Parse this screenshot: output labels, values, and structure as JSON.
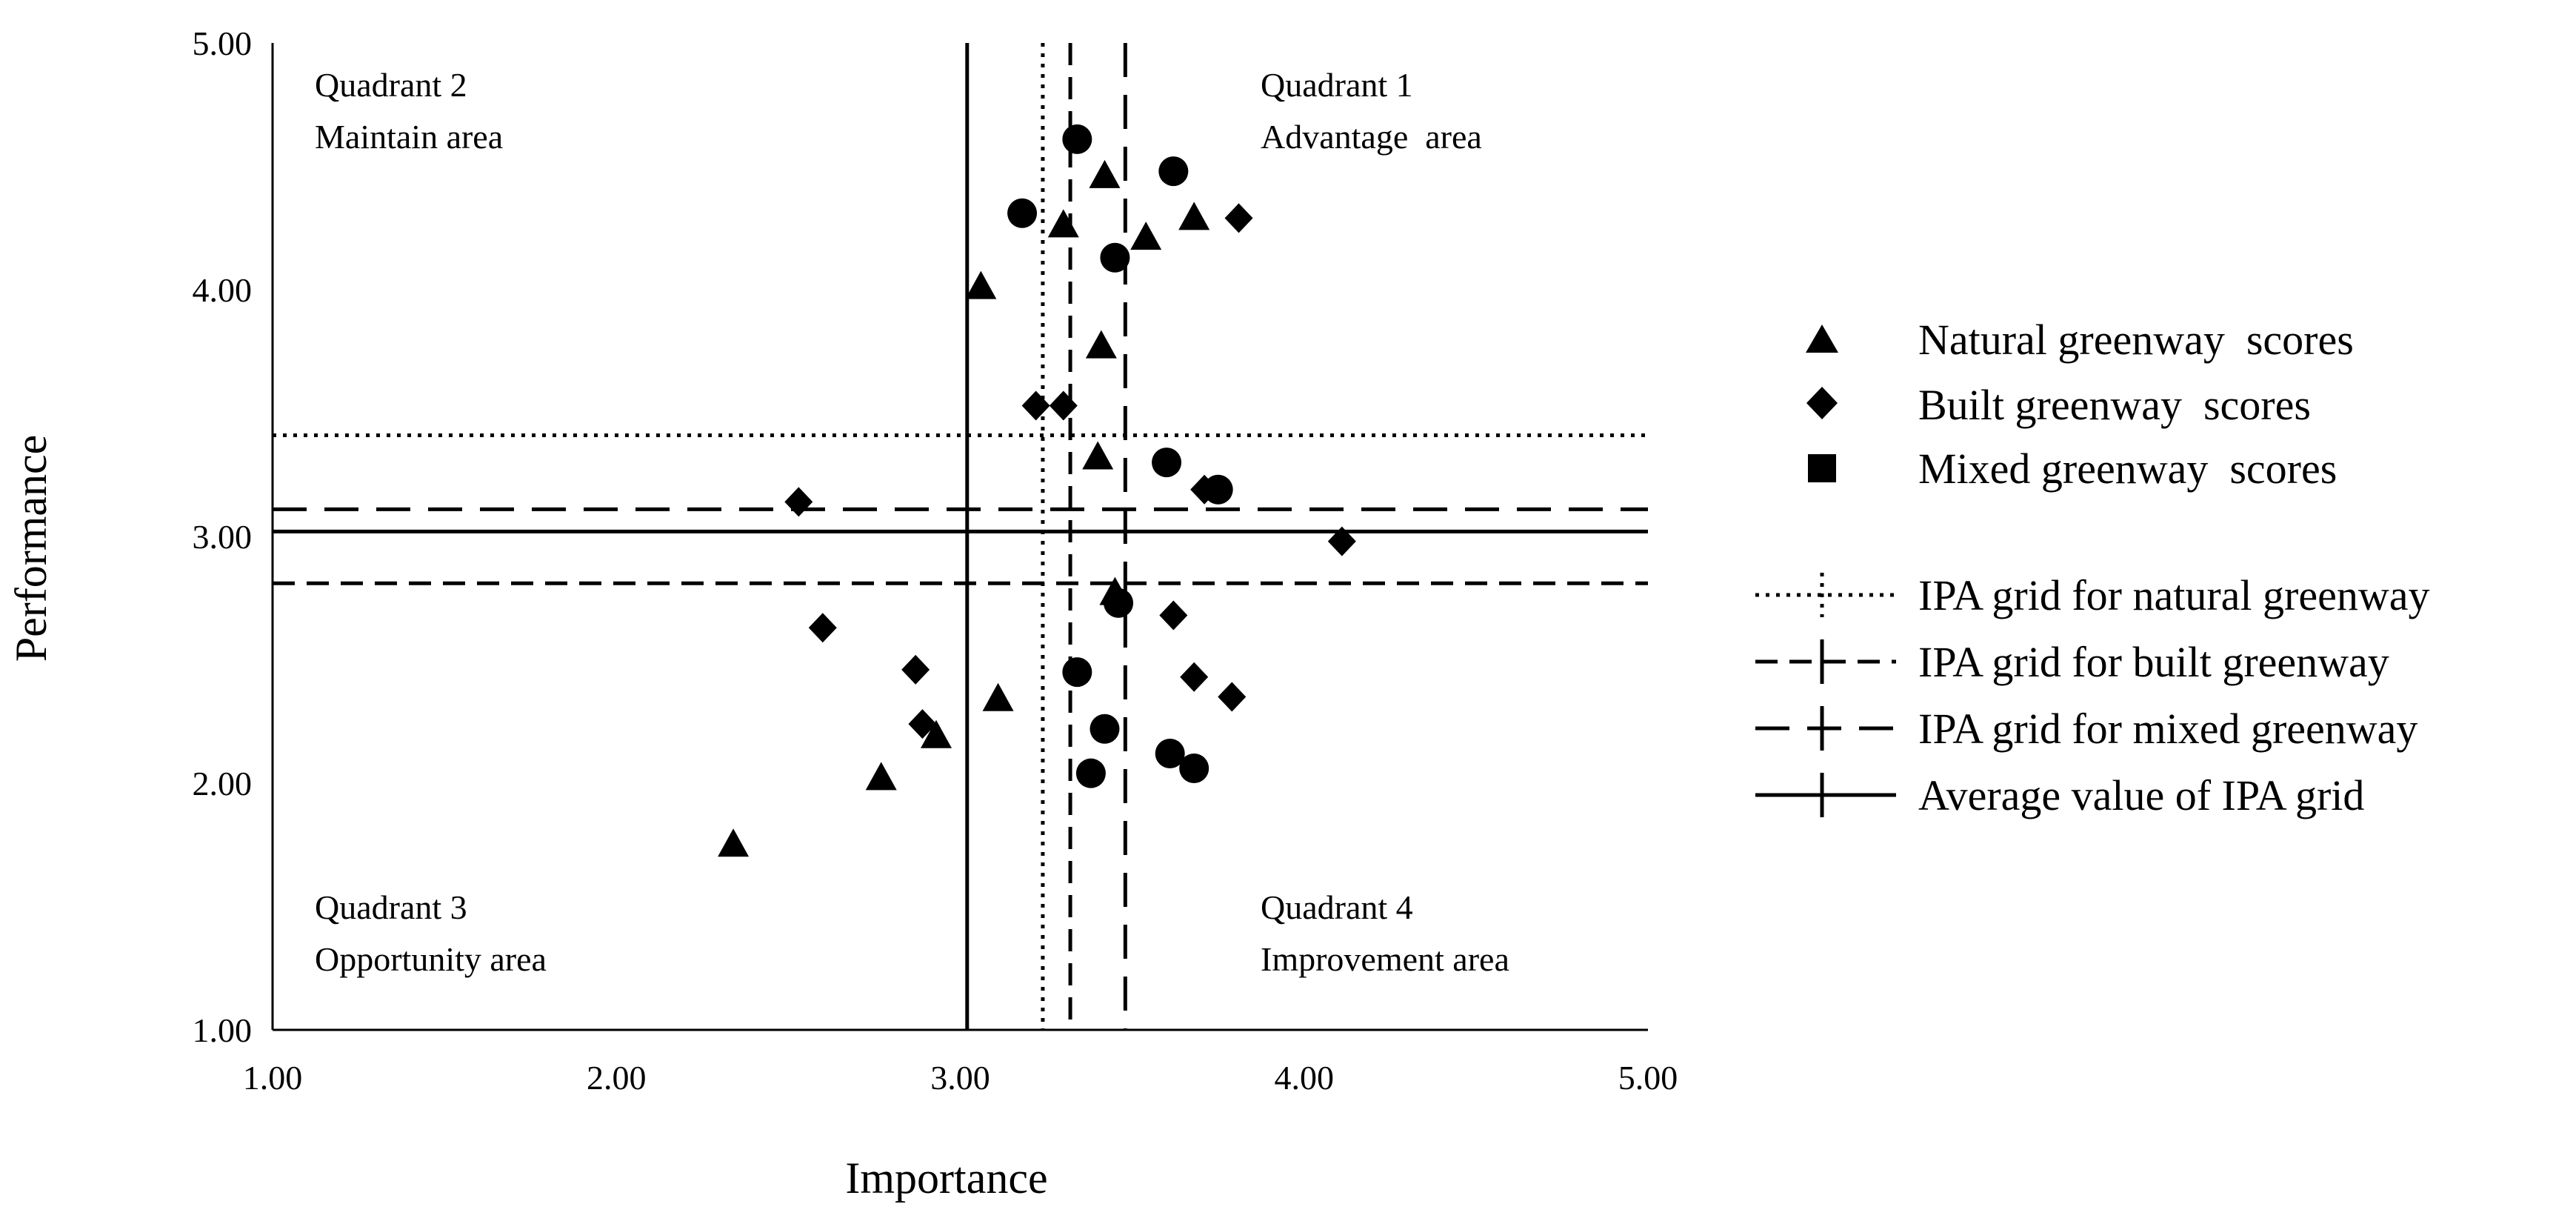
{
  "chart_data": {
    "type": "scatter",
    "title": "",
    "xlabel": "Importance",
    "ylabel": "Performance",
    "xlim": [
      1.0,
      5.0
    ],
    "ylim": [
      1.0,
      5.0
    ],
    "x_ticks": [
      "1.00",
      "2.00",
      "3.00",
      "4.00",
      "5.00"
    ],
    "y_ticks": [
      "1.00",
      "2.00",
      "3.00",
      "4.00",
      "5.00"
    ],
    "grid": false,
    "legend_position": "right",
    "quadrants": [
      {
        "title": "Quadrant 2",
        "subtitle": "Maintain area",
        "position": "top-left"
      },
      {
        "title": "Quadrant 1",
        "subtitle": "Advantage  area",
        "position": "top-right"
      },
      {
        "title": "Quadrant 3",
        "subtitle": "Opportunity area",
        "position": "bottom-left"
      },
      {
        "title": "Quadrant 4",
        "subtitle": "Improvement area",
        "position": "bottom-right"
      }
    ],
    "series": [
      {
        "name": "Natural greenway  scores",
        "marker": "triangle",
        "color": "#000000",
        "points": [
          [
            3.42,
            4.46
          ],
          [
            3.3,
            4.26
          ],
          [
            3.54,
            4.21
          ],
          [
            3.68,
            4.29
          ],
          [
            3.06,
            4.01
          ],
          [
            3.41,
            3.77
          ],
          [
            3.4,
            3.32
          ],
          [
            3.45,
            2.77
          ],
          [
            3.11,
            2.34
          ],
          [
            2.93,
            2.19
          ],
          [
            2.77,
            2.02
          ],
          [
            2.34,
            1.75
          ]
        ]
      },
      {
        "name": "Built greenway  scores",
        "marker": "diamond",
        "color": "#000000",
        "points": [
          [
            3.81,
            4.29
          ],
          [
            3.22,
            3.53
          ],
          [
            3.3,
            3.53
          ],
          [
            2.53,
            3.14
          ],
          [
            3.71,
            3.19
          ],
          [
            4.11,
            2.98
          ],
          [
            2.6,
            2.63
          ],
          [
            3.62,
            2.68
          ],
          [
            2.87,
            2.46
          ],
          [
            3.68,
            2.43
          ],
          [
            3.79,
            2.35
          ],
          [
            2.89,
            2.24
          ]
        ]
      },
      {
        "name": "Mixed greenway  scores",
        "marker": "circle",
        "color": "#000000",
        "points": [
          [
            3.34,
            4.61
          ],
          [
            3.62,
            4.48
          ],
          [
            3.18,
            4.31
          ],
          [
            3.45,
            4.13
          ],
          [
            3.6,
            3.3
          ],
          [
            3.75,
            3.19
          ],
          [
            3.46,
            2.73
          ],
          [
            3.34,
            2.45
          ],
          [
            3.42,
            2.22
          ],
          [
            3.61,
            2.12
          ],
          [
            3.38,
            2.04
          ],
          [
            3.68,
            2.06
          ]
        ]
      }
    ],
    "grid_lines": [
      {
        "name": "IPA grid for natural greenway",
        "style": "dotted",
        "x": 3.24,
        "y": 3.41
      },
      {
        "name": "IPA grid for built greenway",
        "style": "short-dash",
        "x": 3.32,
        "y": 2.81
      },
      {
        "name": "IPA grid for mixed greenway",
        "style": "long-dash",
        "x": 3.48,
        "y": 3.11
      },
      {
        "name": "Average value of IPA grid",
        "style": "solid",
        "x": 3.02,
        "y": 3.02
      }
    ]
  }
}
